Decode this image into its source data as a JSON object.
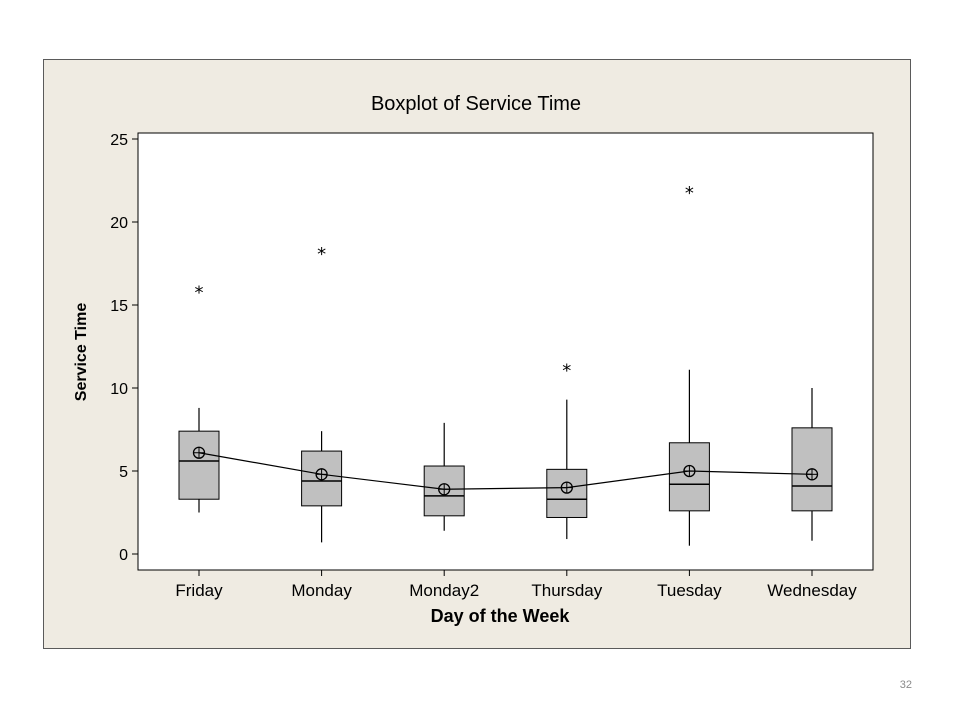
{
  "slide_number": "32",
  "colors": {
    "frame_bg": "#efebe2",
    "plot_bg": "#ffffff",
    "box_fill": "#c0c0c0",
    "line": "#000000"
  },
  "chart_data": {
    "type": "boxplot",
    "title": "Boxplot of Service Time",
    "xlabel": "Day of the Week",
    "ylabel": "Service Time",
    "ylim": [
      0,
      25
    ],
    "yticks": [
      0,
      5,
      10,
      15,
      20,
      25
    ],
    "categories": [
      "Friday",
      "Monday",
      "Monday2",
      "Thursday",
      "Tuesday",
      "Wednesday"
    ],
    "boxes": [
      {
        "category": "Friday",
        "whisker_low": 2.5,
        "q1": 3.3,
        "median": 5.6,
        "q3": 7.4,
        "whisker_high": 8.8,
        "mean": 6.1,
        "outliers": [
          16.0
        ]
      },
      {
        "category": "Monday",
        "whisker_low": 0.7,
        "q1": 2.9,
        "median": 4.4,
        "q3": 6.2,
        "whisker_high": 7.4,
        "mean": 4.8,
        "outliers": [
          18.3
        ]
      },
      {
        "category": "Monday2",
        "whisker_low": 1.4,
        "q1": 2.3,
        "median": 3.5,
        "q3": 5.3,
        "whisker_high": 7.9,
        "mean": 3.9,
        "outliers": []
      },
      {
        "category": "Thursday",
        "whisker_low": 0.9,
        "q1": 2.2,
        "median": 3.3,
        "q3": 5.1,
        "whisker_high": 9.3,
        "mean": 4.0,
        "outliers": [
          11.3
        ]
      },
      {
        "category": "Tuesday",
        "whisker_low": 0.5,
        "q1": 2.6,
        "median": 4.2,
        "q3": 6.7,
        "whisker_high": 11.1,
        "mean": 5.0,
        "outliers": [
          22.0
        ]
      },
      {
        "category": "Wednesday",
        "whisker_low": 0.8,
        "q1": 2.6,
        "median": 4.1,
        "q3": 7.6,
        "whisker_high": 10.0,
        "mean": 4.8,
        "outliers": []
      }
    ],
    "mean_connect_line": true,
    "grid": false,
    "legend": "none"
  }
}
